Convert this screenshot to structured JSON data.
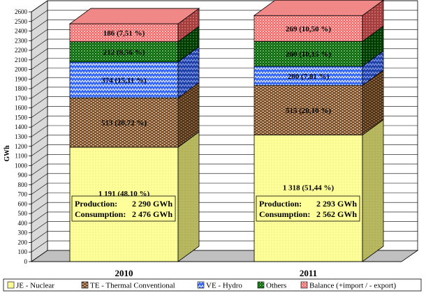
{
  "chart_data": {
    "type": "bar",
    "stacked": true,
    "three_d": true,
    "ylabel": "GWh",
    "ylim": [
      0,
      2600
    ],
    "ytick_step": 100,
    "grid": true,
    "legend_position": "bottom",
    "categories": [
      "2010",
      "2011"
    ],
    "series": [
      {
        "name": "JE - Nuclear",
        "color": "#ffff99",
        "pattern": "dots",
        "values": [
          1191,
          1318
        ],
        "labels": [
          "1 191 (48,10 %)",
          "1 318 (51,44 %)"
        ]
      },
      {
        "name": "TE - Thermal Conventional",
        "color": "#996633",
        "pattern": "bricks",
        "values": [
          513,
          515
        ],
        "labels": [
          "513 (20,72 %)",
          "515 (20,10 %)"
        ]
      },
      {
        "name": "VE - Hydro",
        "color": "#3366ff",
        "pattern": "zigzag",
        "values": [
          374,
          200
        ],
        "labels": [
          "374 (15,11 %)",
          "200 (7,81 %)"
        ]
      },
      {
        "name": "Others",
        "color": "#006600",
        "pattern": "dots",
        "values": [
          212,
          260
        ],
        "labels": [
          "212 (8,56 %)",
          "260 (10,15 %)"
        ]
      },
      {
        "name": "Balance (+import / - export)",
        "color": "#ff6666",
        "pattern": "dots",
        "values": [
          186,
          269
        ],
        "labels": [
          "186 (7,51 %)",
          "269 (10,50 %)"
        ]
      }
    ],
    "annotations": [
      {
        "production_label": "Production:",
        "production_value": "2 290 GWh",
        "consumption_label": "Consumption:",
        "consumption_value": "2 476 GWh"
      },
      {
        "production_label": "Production:",
        "production_value": "2 293 GWh",
        "consumption_label": "Consumption:",
        "consumption_value": "2 562 GWh"
      }
    ]
  }
}
